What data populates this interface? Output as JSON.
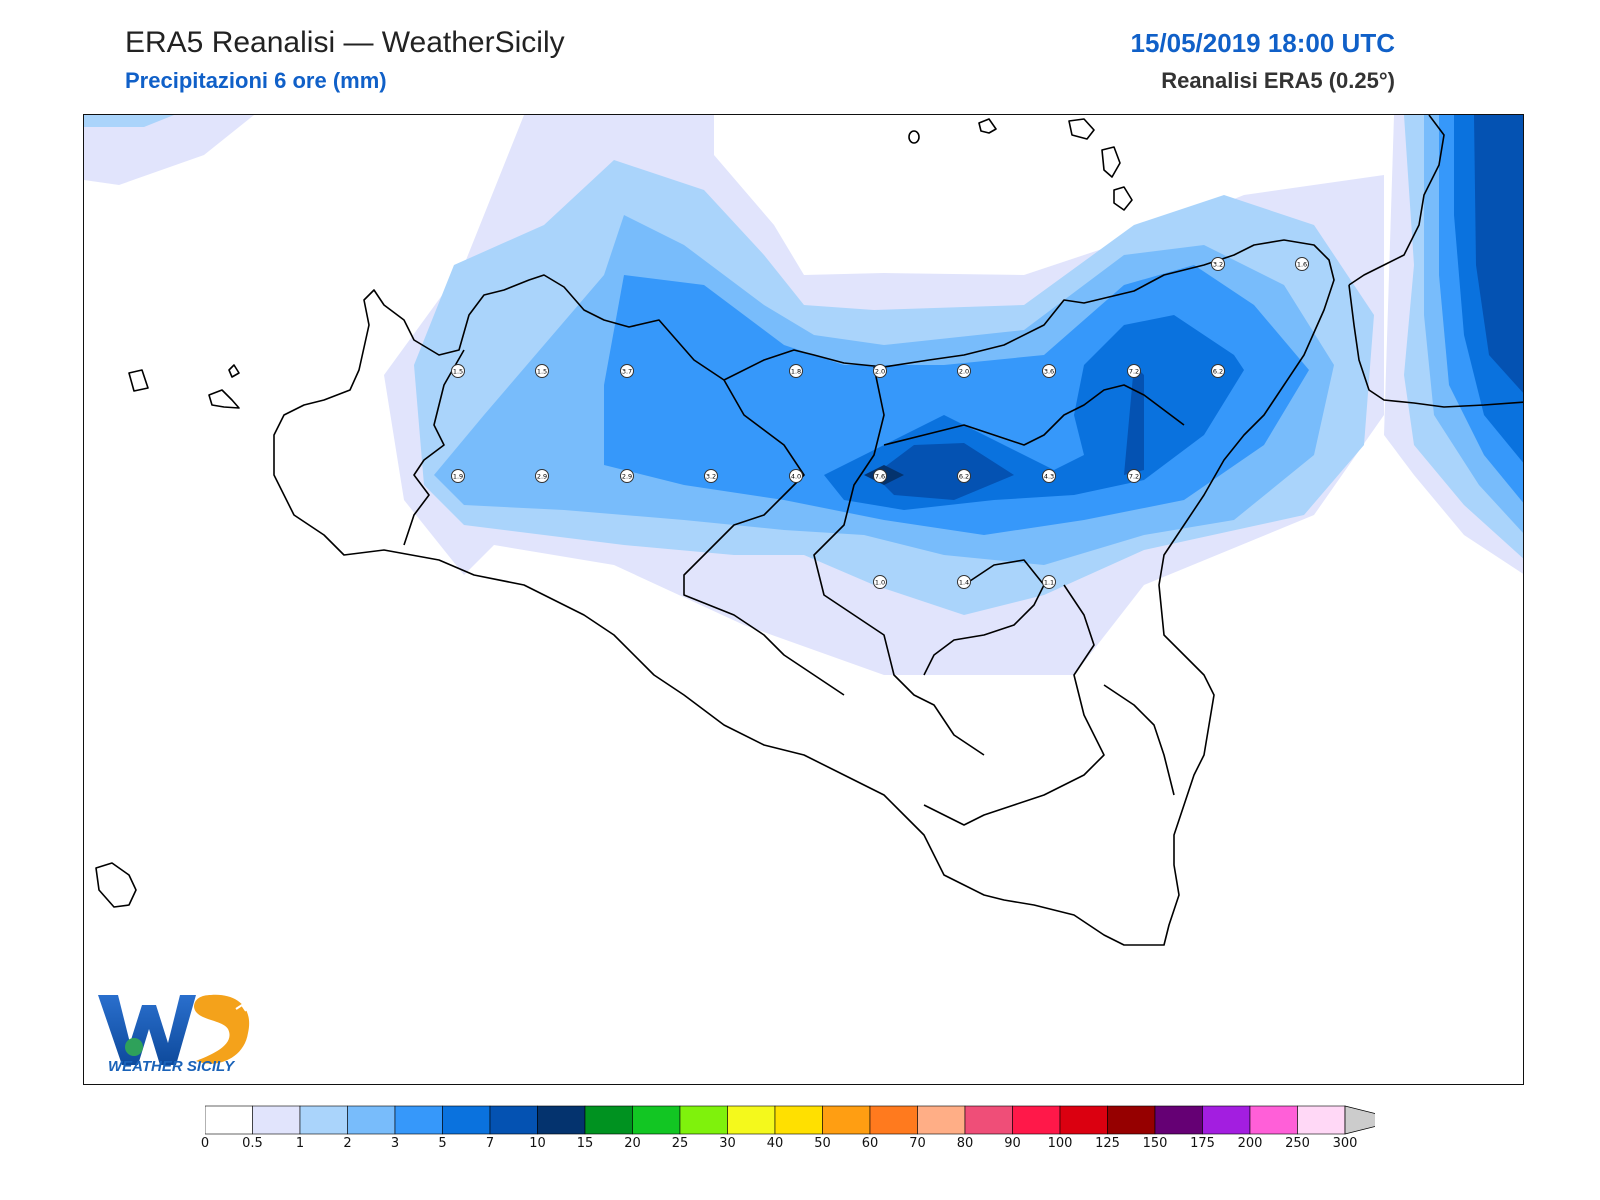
{
  "header": {
    "title": "ERA5 Reanalisi — WeatherSicily",
    "subtitle": "Precipitazioni 6 ore (mm)",
    "datetime": "15/05/2019 18:00 UTC",
    "source": "Reanalisi ERA5 (0.25°)"
  },
  "logo": {
    "text": "WEATHER SICILY",
    "lettering": "WS"
  },
  "colors": {
    "accent_blue": "#1060c8",
    "coast_line": "#000000",
    "logo_blue": "#1a62b8",
    "logo_orange": "#f4a21b"
  },
  "map": {
    "region": "Sicily",
    "station_values": [
      {
        "label": "1.5"
      },
      {
        "label": "1.5"
      },
      {
        "label": "3.7"
      },
      {
        "label": "1.8"
      },
      {
        "label": "2.0"
      },
      {
        "label": "2.0"
      },
      {
        "label": "3.6"
      },
      {
        "label": "7.2"
      },
      {
        "label": "6.2"
      },
      {
        "label": "3.2"
      },
      {
        "label": "1.6"
      },
      {
        "label": "1.9"
      },
      {
        "label": "2.9"
      },
      {
        "label": "2.9"
      },
      {
        "label": "3.2"
      },
      {
        "label": "4.0"
      },
      {
        "label": "7.6"
      },
      {
        "label": "6.2"
      },
      {
        "label": "4.3"
      },
      {
        "label": "7.2"
      },
      {
        "label": "1.0"
      },
      {
        "label": "1.4"
      },
      {
        "label": "1.1"
      }
    ]
  },
  "colorbar": {
    "labels": [
      "0",
      "0.5",
      "1",
      "2",
      "3",
      "5",
      "7",
      "10",
      "15",
      "20",
      "25",
      "30",
      "40",
      "50",
      "60",
      "70",
      "80",
      "90",
      "100",
      "125",
      "150",
      "175",
      "200",
      "250",
      "300"
    ],
    "colors": [
      "#ffffff",
      "#e1e4fc",
      "#aad4fb",
      "#78bcfb",
      "#3698fa",
      "#0a72de",
      "#0452b2",
      "#04336e",
      "#009220",
      "#12c623",
      "#7ff20c",
      "#f4f91c",
      "#ffe000",
      "#ff9e12",
      "#ff7a1e",
      "#ffae86",
      "#ef4e78",
      "#ff1849",
      "#db0010",
      "#960000",
      "#650074",
      "#a31ee0",
      "#ff5fd8",
      "#ffd8f6"
    ],
    "extend_color": "#cccccc"
  }
}
